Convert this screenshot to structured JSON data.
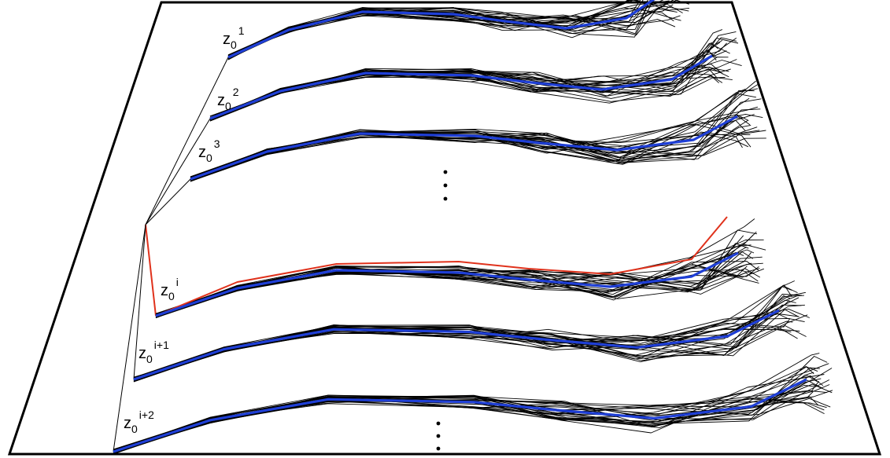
{
  "labels": {
    "z1": {
      "base": "z",
      "sub": "0",
      "sup": "1"
    },
    "z2": {
      "base": "z",
      "sub": "0",
      "sup": "2"
    },
    "z3": {
      "base": "z",
      "sub": "0",
      "sup": "3"
    },
    "zi": {
      "base": "z",
      "sub": "0",
      "sup": "i"
    },
    "zi1": {
      "base": "z",
      "sub": "0",
      "sup": "i+1"
    },
    "zi2": {
      "base": "z",
      "sub": "0",
      "sup": "i+2"
    }
  },
  "colors": {
    "frame": "#000000",
    "thin_lines": "#000000",
    "mean_path": "#1f3fd6",
    "selected_path": "#e0321c"
  }
}
